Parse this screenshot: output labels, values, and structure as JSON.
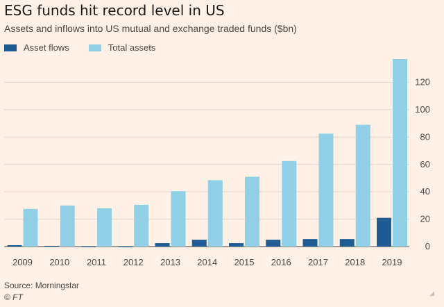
{
  "header": {
    "title": "ESG funds hit record level in US",
    "subtitle": "Assets and inflows into US mutual and exchange traded funds ($bn)"
  },
  "legend": {
    "items": [
      {
        "label": "Asset flows",
        "color": "#1f5c94"
      },
      {
        "label": "Total assets",
        "color": "#8fd0e6"
      }
    ]
  },
  "footer": {
    "source": "Source: Morningstar",
    "credit": "© FT",
    "resize_icon": "resize-handle-icon"
  },
  "chart_data": {
    "type": "bar",
    "title": "ESG funds hit record level in US",
    "subtitle": "Assets and inflows into US mutual and exchange traded funds ($bn)",
    "xlabel": "",
    "ylabel": "$bn",
    "categories": [
      "2009",
      "2010",
      "2011",
      "2012",
      "2013",
      "2014",
      "2015",
      "2016",
      "2017",
      "2018",
      "2019"
    ],
    "series": [
      {
        "name": "Asset flows",
        "color": "#1f5c94",
        "values": [
          1,
          0.5,
          -0.5,
          -0.5,
          2.5,
          5,
          2.5,
          5,
          5.5,
          5.5,
          21
        ]
      },
      {
        "name": "Total assets",
        "color": "#8fd0e6",
        "values": [
          27.5,
          30,
          28,
          30.5,
          40.5,
          48.5,
          51,
          62.5,
          82.5,
          89,
          137
        ]
      }
    ],
    "ylim": [
      0,
      137
    ],
    "yticks": [
      0,
      20,
      40,
      60,
      80,
      100,
      120
    ],
    "y_axis_side": "right",
    "grid": true,
    "legend_position": "top-left"
  }
}
